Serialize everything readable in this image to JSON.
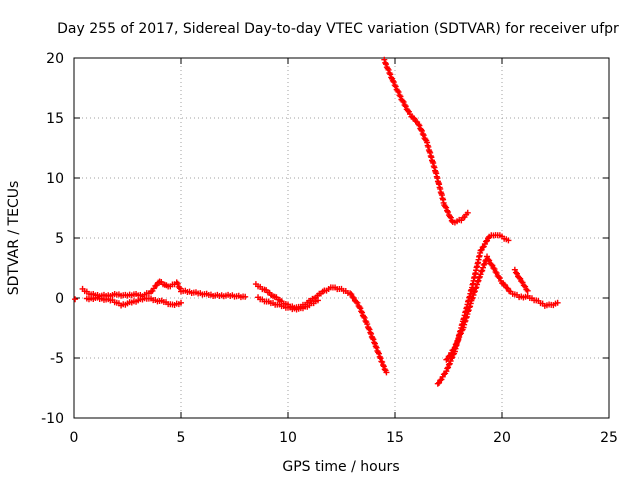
{
  "chart_data": {
    "type": "scatter",
    "title": "Day 255 of 2017, Sidereal Day-to-day VTEC variation (SDTVAR) for receiver ufpr",
    "xlabel": "GPS time / hours",
    "ylabel": "SDTVAR / TECUs",
    "xlim": [
      0,
      25
    ],
    "ylim": [
      -10,
      20
    ],
    "xticks": [
      0,
      5,
      10,
      15,
      20,
      25
    ],
    "yticks": [
      -10,
      -5,
      0,
      5,
      10,
      15,
      20
    ],
    "xtick_labels": [
      "0",
      "5",
      "10",
      "15",
      "20",
      "25"
    ],
    "ytick_labels": [
      "-10",
      "-5",
      "0",
      "5",
      "10",
      "15",
      "20"
    ],
    "grid": true,
    "marker": "+",
    "series_color": "#ff0000",
    "segments": [
      {
        "name": "upper-trace-a",
        "x": [
          0.4,
          0.8,
          1.2,
          1.6,
          2.0,
          2.4,
          2.8,
          3.2,
          3.6,
          4.0,
          4.4,
          4.8,
          5.0,
          5.4,
          5.8,
          6.2,
          6.6,
          7.0,
          7.4,
          7.8,
          8.0
        ],
        "y": [
          0.7,
          0.3,
          0.2,
          0.2,
          0.3,
          0.2,
          0.3,
          0.2,
          0.5,
          1.4,
          0.9,
          1.3,
          0.6,
          0.5,
          0.4,
          0.3,
          0.2,
          0.2,
          0.2,
          0.1,
          0.1
        ]
      },
      {
        "name": "lower-trace-a",
        "x": [
          0.6,
          1.0,
          1.4,
          1.8,
          2.2,
          2.6,
          3.0,
          3.4,
          3.8,
          4.2,
          4.6,
          5.0
        ],
        "y": [
          -0.1,
          0.0,
          -0.1,
          -0.2,
          -0.6,
          -0.4,
          -0.2,
          0.0,
          -0.2,
          -0.3,
          -0.6,
          -0.4
        ]
      },
      {
        "name": "single-point",
        "x": [
          0.05
        ],
        "y": [
          -0.1
        ]
      },
      {
        "name": "trace-b",
        "x": [
          8.5,
          8.9,
          9.3,
          9.7,
          10.1,
          10.5,
          10.9,
          11.3,
          11.7,
          12.1,
          12.5,
          12.9,
          13.3,
          13.7,
          14.1,
          14.4,
          14.6
        ],
        "y": [
          1.1,
          0.7,
          0.2,
          -0.3,
          -0.7,
          -0.8,
          -0.4,
          0.1,
          0.6,
          0.9,
          0.7,
          0.4,
          -0.6,
          -2.2,
          -4.0,
          -5.4,
          -6.2
        ]
      },
      {
        "name": "trace-b-lower",
        "x": [
          8.6,
          9.0,
          9.4,
          9.8,
          10.2,
          10.6,
          11.0,
          11.4
        ],
        "y": [
          0.0,
          -0.3,
          -0.5,
          -0.7,
          -0.9,
          -0.9,
          -0.6,
          -0.2
        ]
      },
      {
        "name": "trace-c",
        "x": [
          14.5,
          14.9,
          15.3,
          15.7,
          16.1,
          16.5,
          16.9,
          17.3,
          17.7,
          18.1,
          18.4
        ],
        "y": [
          19.8,
          18.1,
          16.6,
          15.3,
          14.5,
          12.9,
          10.5,
          7.8,
          6.3,
          6.5,
          7.1
        ]
      },
      {
        "name": "trace-d",
        "x": [
          17.0,
          17.4,
          17.8,
          18.2,
          18.6,
          19.0,
          19.4,
          19.7,
          20.0,
          20.3
        ],
        "y": [
          -7.2,
          -6.1,
          -4.4,
          -1.8,
          0.9,
          3.9,
          5.1,
          5.3,
          5.1,
          4.8
        ]
      },
      {
        "name": "trace-e",
        "x": [
          17.4,
          17.8,
          18.2,
          18.6,
          19.0,
          19.3,
          19.6,
          20.0,
          20.4,
          20.8,
          21.2,
          21.6,
          22.0,
          22.3,
          22.6
        ],
        "y": [
          -5.2,
          -4.1,
          -2.4,
          -0.1,
          2.0,
          3.4,
          2.5,
          1.3,
          0.5,
          0.1,
          0.1,
          -0.2,
          -0.6,
          -0.6,
          -0.4
        ]
      },
      {
        "name": "trace-f",
        "x": [
          20.6,
          20.9,
          21.2
        ],
        "y": [
          2.3,
          1.4,
          0.6
        ]
      }
    ]
  }
}
